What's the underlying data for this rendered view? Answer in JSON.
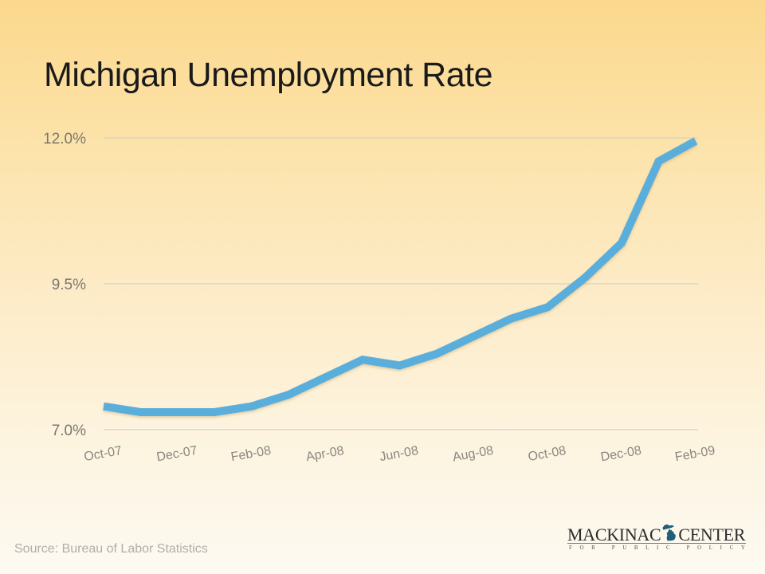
{
  "title": "Michigan Unemployment Rate",
  "source": "Source: Bureau of Labor Statistics",
  "logo": {
    "left_word": "MACKINAC",
    "right_word": "CENTER",
    "subtitle": "FOR PUBLIC POLICY",
    "icon": "michigan-map-icon",
    "icon_color": "#1f5f78"
  },
  "colors": {
    "line": "#5aaedc",
    "gridline": "#d9d2c3",
    "background_top": "#fbd88c",
    "background_bottom": "#fdfaf2"
  },
  "y_ticks": [
    "12.0%",
    "9.5%",
    "7.0%"
  ],
  "x_ticks": [
    "Oct-07",
    "Dec-07",
    "Feb-08",
    "Apr-08",
    "Jun-08",
    "Aug-08",
    "Oct-08",
    "Dec-08",
    "Feb-09"
  ],
  "chart_data": {
    "type": "line",
    "title": "Michigan Unemployment Rate",
    "xlabel": "",
    "ylabel": "",
    "ylim": [
      7.0,
      12.0
    ],
    "yticks": [
      7.0,
      9.5,
      12.0
    ],
    "ytick_labels": [
      "7.0%",
      "9.5%",
      "12.0%"
    ],
    "grid": "horizontal",
    "legend": "none",
    "x": [
      "Oct-07",
      "Nov-07",
      "Dec-07",
      "Jan-08",
      "Feb-08",
      "Mar-08",
      "Apr-08",
      "May-08",
      "Jun-08",
      "Jul-08",
      "Aug-08",
      "Sep-08",
      "Oct-08",
      "Nov-08",
      "Dec-08",
      "Jan-09",
      "Feb-09"
    ],
    "xtick_labels": [
      "Oct-07",
      "Dec-07",
      "Feb-08",
      "Apr-08",
      "Jun-08",
      "Aug-08",
      "Oct-08",
      "Dec-08",
      "Feb-09"
    ],
    "series": [
      {
        "name": "Michigan Unemployment Rate",
        "values": [
          7.4,
          7.3,
          7.3,
          7.3,
          7.4,
          7.6,
          7.9,
          8.2,
          8.1,
          8.3,
          8.6,
          8.9,
          9.1,
          9.6,
          10.2,
          11.6,
          11.95
        ]
      }
    ],
    "source": "Source: Bureau of Labor Statistics"
  }
}
